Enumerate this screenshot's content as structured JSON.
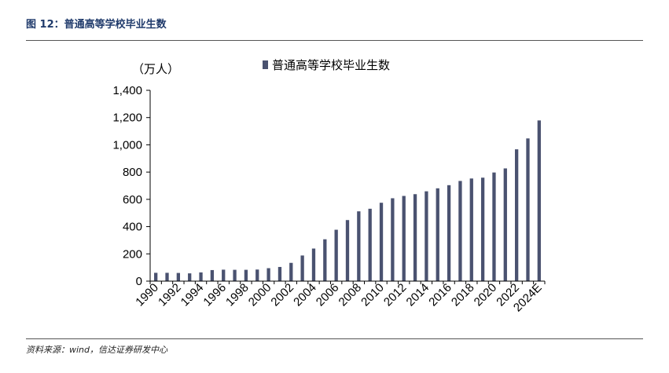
{
  "header": {
    "figure_title": "图 12：普通高等学校毕业生数"
  },
  "footer": {
    "source": "资料来源：wind，信达证券研发中心"
  },
  "colors": {
    "bar": "#4a5270",
    "title": "#1f3a6b"
  },
  "chart_data": {
    "type": "bar",
    "unit_label": "（万人）",
    "legend_position": "top",
    "ylim": [
      0,
      1400
    ],
    "y_ticks": [
      0,
      200,
      400,
      600,
      800,
      1000,
      1200,
      1400
    ],
    "y_tick_labels": [
      "0",
      "200",
      "400",
      "600",
      "800",
      "1,000",
      "1,200",
      "1,400"
    ],
    "categories": [
      "1990",
      "1991",
      "1992",
      "1993",
      "1994",
      "1995",
      "1996",
      "1997",
      "1998",
      "1999",
      "2000",
      "2001",
      "2002",
      "2003",
      "2004",
      "2005",
      "2006",
      "2007",
      "2008",
      "2009",
      "2010",
      "2011",
      "2012",
      "2013",
      "2014",
      "2015",
      "2016",
      "2017",
      "2018",
      "2019",
      "2020",
      "2021",
      "2022",
      "2023",
      "2024E"
    ],
    "x_tick_labels": [
      "1990",
      "",
      "1992",
      "",
      "1994",
      "",
      "1996",
      "",
      "1998",
      "",
      "2000",
      "",
      "2002",
      "",
      "2004",
      "",
      "2006",
      "",
      "2008",
      "",
      "2010",
      "",
      "2012",
      "",
      "2014",
      "",
      "2016",
      "",
      "2018",
      "",
      "2020",
      "",
      "2022",
      "",
      "2024E"
    ],
    "series": [
      {
        "name": "普通高等学校毕业生数",
        "values": [
          61,
          61,
          60,
          57,
          64,
          81,
          84,
          83,
          83,
          85,
          95,
          104,
          134,
          188,
          239,
          307,
          377,
          448,
          512,
          531,
          575,
          608,
          625,
          638,
          659,
          681,
          704,
          735,
          753,
          759,
          797,
          827,
          967,
          1047,
          1179
        ]
      }
    ]
  }
}
